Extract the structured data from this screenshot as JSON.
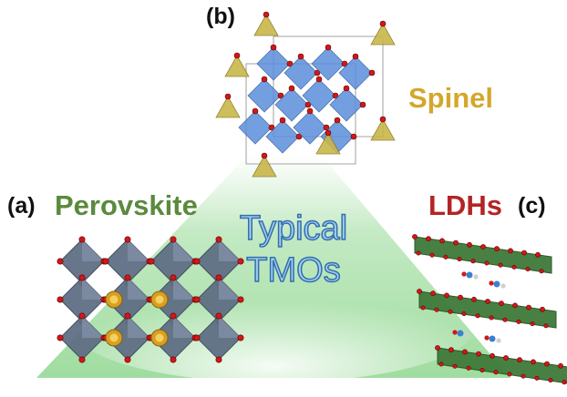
{
  "labels": {
    "panel_a": "(a)",
    "panel_b": "(b)",
    "panel_c": "(c)",
    "perovskite": "Perovskite",
    "spinel": "Spinel",
    "ldhs": "LDHs",
    "center_line1": "Typical",
    "center_line2": "TMOs"
  },
  "colors": {
    "pyramid_green": "#8fd68f",
    "perovskite_text": "#5b8a3c",
    "spinel_text": "#d4a72c",
    "ldhs_text": "#b32424",
    "center_text_fill": "#a9cdec",
    "center_text_stroke": "#2f6fb0",
    "octahedron_gray": "#5f6f84",
    "octahedron_blue": "#5b8fdc",
    "tetrahedron_yellow": "#c9b64a",
    "oxygen_red": "#d01818",
    "a_site_gold": "#d9a020",
    "ldh_green": "#3f7a3a"
  }
}
